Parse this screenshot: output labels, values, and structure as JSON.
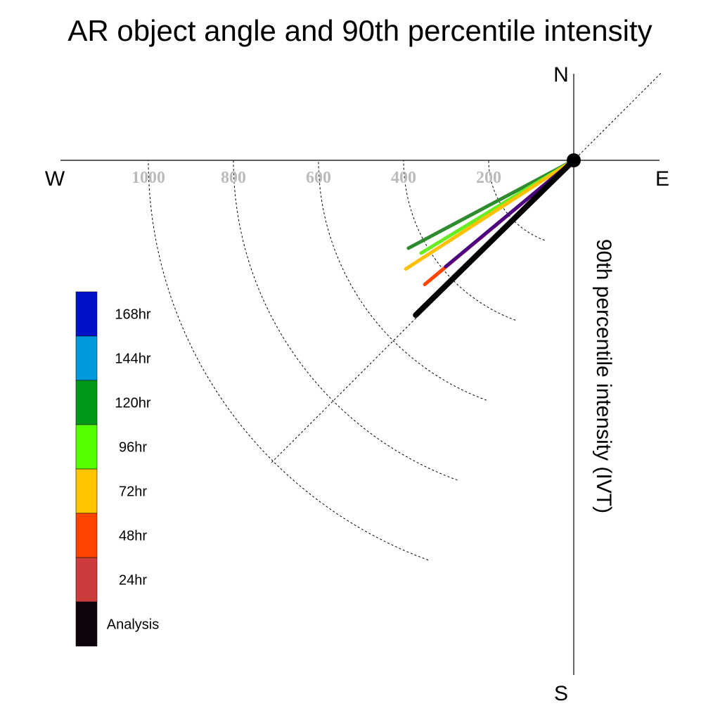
{
  "chart_data": {
    "type": "polar-vector",
    "title": "AR object angle and 90th percentile intensity",
    "axis_label": "90th percentile intensity (IVT)",
    "compass": {
      "north": "N",
      "south": "S",
      "east": "E",
      "west": "W"
    },
    "radial_ticks": [
      200,
      400,
      600,
      800,
      1000
    ],
    "radial_tick_labels": [
      "200",
      "400",
      "600",
      "800",
      "1000"
    ],
    "radial_max": 1200,
    "reference_direction_deg": 45,
    "origin_marker": "filled-circle",
    "series": [
      {
        "name": "120hr",
        "color": "#2e8b2e",
        "angle_deg": 62,
        "intensity": 440
      },
      {
        "name": "96hr",
        "color": "#66ee22",
        "angle_deg": 58.7,
        "intensity": 420
      },
      {
        "name": "72hr",
        "color": "#ffc000",
        "angle_deg": 57.1,
        "intensity": 470
      },
      {
        "name": "48hr",
        "color": "#ff4500",
        "angle_deg": 50.2,
        "intensity": 456
      },
      {
        "name": "",
        "color": "#4b0082",
        "angle_deg": 50.3,
        "intensity": 391
      },
      {
        "name": "24hr",
        "color": "#b03a3a",
        "angle_deg": 45.6,
        "intensity": 516
      },
      {
        "name": "Analysis",
        "color": "#000000",
        "angle_deg": 45.6,
        "intensity": 520
      }
    ],
    "legend": [
      {
        "label": "168hr",
        "color": "#0011c8"
      },
      {
        "label": "144hr",
        "color": "#0099dd"
      },
      {
        "label": "120hr",
        "color": "#009918"
      },
      {
        "label": "96hr",
        "color": "#55ff00"
      },
      {
        "label": "72hr",
        "color": "#ffc400"
      },
      {
        "label": "48hr",
        "color": "#ff4400"
      },
      {
        "label": "24hr",
        "color": "#cc3c3c"
      },
      {
        "label": "Analysis",
        "color": "#10040c"
      }
    ]
  }
}
